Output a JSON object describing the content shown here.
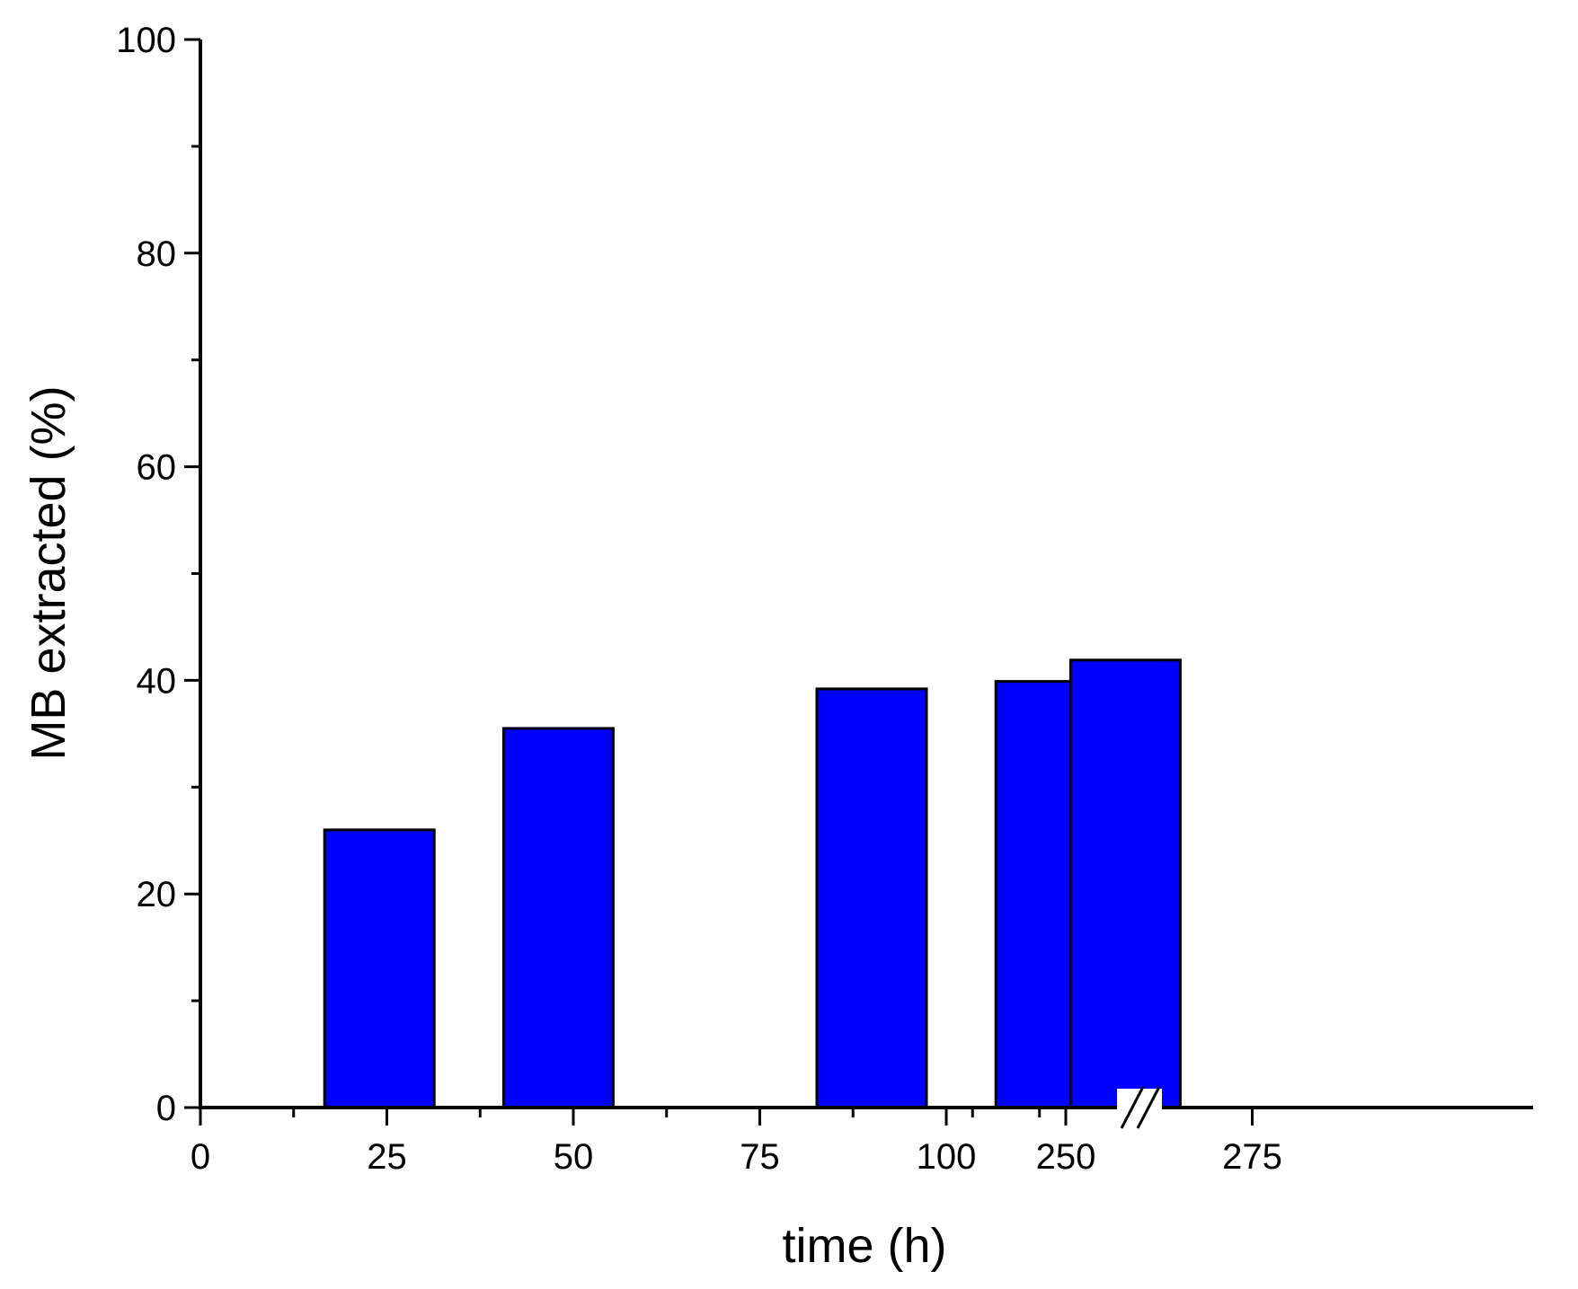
{
  "chart_data": {
    "type": "bar",
    "title": "",
    "xlabel": "time (h)",
    "ylabel": "MB extracted (%)",
    "ylim": [
      0,
      100
    ],
    "y_ticks": [
      "0",
      "20",
      "40",
      "60",
      "80",
      "100"
    ],
    "x_ticks": [
      "0",
      "25",
      "50",
      "75",
      "100",
      "250",
      "275"
    ],
    "x_axis_break": [
      121,
      244
    ],
    "x": [
      24,
      48,
      90,
      114,
      258
    ],
    "values": [
      26,
      35.5,
      39.2,
      39.9,
      41.9
    ],
    "bar_color": "#0000ff",
    "grid": false,
    "legend": "none"
  }
}
